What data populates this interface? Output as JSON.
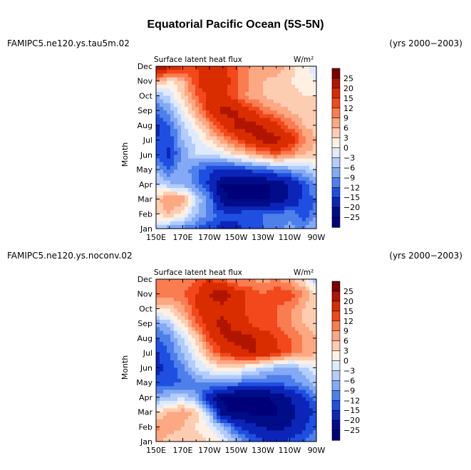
{
  "page": {
    "title": "Equatorial Pacific Ocean (5S-5N)"
  },
  "chart_data": [
    {
      "type": "heatmap",
      "run_label": "FAMIPC5.ne120.ys.tau5m.02",
      "period": "(yrs 2000−2003)",
      "subtitle": "Surface latent heat flux",
      "units": "W/m²",
      "ylabel": "Month",
      "xlabel": "",
      "xlim": [
        150,
        270
      ],
      "x_ticks": [
        "150E",
        "170E",
        "170W",
        "150W",
        "130W",
        "110W",
        "90W"
      ],
      "y_ticks": [
        "Jan",
        "Feb",
        "Mar",
        "Apr",
        "May",
        "Jun",
        "Jul",
        "Aug",
        "Sep",
        "Oct",
        "Nov",
        "Dec"
      ],
      "colorbar_levels": [
        "25",
        "20",
        "15",
        "12",
        "9",
        "6",
        "3",
        "0",
        "−3",
        "−6",
        "−9",
        "−12",
        "−15",
        "−20",
        "−25"
      ],
      "colorbar_colors": [
        "#7b0000",
        "#b01500",
        "#d92d00",
        "#f2481c",
        "#f97d50",
        "#fca882",
        "#fdcdb2",
        "#fff0e3",
        "#dfeaff",
        "#b2ccfb",
        "#84a9f5",
        "#4e7fea",
        "#1f4fe0",
        "#0c25b8",
        "#000c88",
        "#000078"
      ],
      "approx_values_note": "Approximate field values at x = 150E,160E,170E,180,170W,160W,150W,140W,130W,120W,110W,100W,90W for months Jan..Dec",
      "values": [
        [
          -5,
          -8,
          -10,
          -12,
          -14,
          -16,
          -16,
          -14,
          -12,
          -10,
          -8,
          -10,
          -5
        ],
        [
          3,
          6,
          2,
          -6,
          -10,
          -14,
          -14,
          -12,
          -12,
          -12,
          -10,
          -14,
          -10
        ],
        [
          5,
          9,
          8,
          -3,
          -10,
          -24,
          -26,
          -26,
          -26,
          -24,
          -20,
          -14,
          -12
        ],
        [
          -2,
          -5,
          -7,
          -10,
          -16,
          -26,
          -26,
          -26,
          -26,
          -24,
          -20,
          -14,
          -8
        ],
        [
          -7,
          -12,
          -6,
          -12,
          -14,
          -16,
          -16,
          -14,
          -12,
          -10,
          -8,
          -6,
          -2
        ],
        [
          -13,
          -16,
          -8,
          -3,
          -3,
          -1,
          3,
          6,
          9,
          12,
          9,
          6,
          4
        ],
        [
          -15,
          -14,
          -6,
          -2,
          3,
          8,
          13,
          18,
          22,
          22,
          18,
          11,
          6
        ],
        [
          -16,
          -12,
          -4,
          2,
          9,
          16,
          21,
          22,
          20,
          16,
          11,
          6,
          4
        ],
        [
          -12,
          -8,
          0,
          8,
          16,
          22,
          20,
          16,
          11,
          8,
          6,
          4,
          3
        ],
        [
          -6,
          -2,
          4,
          12,
          16,
          16,
          12,
          8,
          6,
          4,
          4,
          3,
          3
        ],
        [
          8,
          2,
          6,
          14,
          20,
          18,
          12,
          9,
          6,
          5,
          3,
          2,
          0
        ],
        [
          26,
          22,
          16,
          15,
          18,
          16,
          12,
          9,
          8,
          9,
          4,
          2,
          -3
        ]
      ]
    },
    {
      "type": "heatmap",
      "run_label": "FAMIPC5.ne120.ys.noconv.02",
      "period": "(yrs 2000−2003)",
      "subtitle": "Surface latent heat flux",
      "units": "W/m²",
      "ylabel": "Month",
      "xlabel": "",
      "xlim": [
        150,
        270
      ],
      "x_ticks": [
        "150E",
        "170E",
        "170W",
        "150W",
        "130W",
        "110W",
        "90W"
      ],
      "y_ticks": [
        "Jan",
        "Feb",
        "Mar",
        "Apr",
        "May",
        "Jun",
        "Jul",
        "Aug",
        "Sep",
        "Oct",
        "Nov",
        "Dec"
      ],
      "colorbar_levels": [
        "25",
        "20",
        "15",
        "12",
        "9",
        "6",
        "3",
        "0",
        "−3",
        "−6",
        "−9",
        "−12",
        "−15",
        "−20",
        "−25"
      ],
      "colorbar_colors": [
        "#7b0000",
        "#b01500",
        "#d92d00",
        "#f2481c",
        "#f97d50",
        "#fca882",
        "#fdcdb2",
        "#fff0e3",
        "#dfeaff",
        "#b2ccfb",
        "#84a9f5",
        "#4e7fea",
        "#1f4fe0",
        "#0c25b8",
        "#000c88",
        "#000078"
      ],
      "approx_values_note": "Approximate field values at x = 150E,160E,170E,180,170W,160W,150W,140W,130W,120W,110W,100W,90W for months Jan..Dec",
      "values": [
        [
          8,
          4,
          3,
          4,
          3,
          0,
          -6,
          -12,
          -14,
          -16,
          -14,
          -12,
          -8
        ],
        [
          10,
          8,
          6,
          3,
          0,
          -6,
          -14,
          -18,
          -20,
          -22,
          -20,
          -16,
          -12
        ],
        [
          2,
          6,
          8,
          5,
          -6,
          -24,
          -26,
          -26,
          -26,
          -26,
          -22,
          -18,
          -14
        ],
        [
          -8,
          -5,
          -4,
          -8,
          -18,
          -26,
          -26,
          -26,
          -26,
          -24,
          -20,
          -16,
          -10
        ],
        [
          -14,
          -14,
          -12,
          -10,
          -8,
          -8,
          -10,
          -12,
          -12,
          -12,
          -10,
          -8,
          -4
        ],
        [
          -16,
          -14,
          -10,
          -3,
          0,
          3,
          3,
          0,
          -3,
          -6,
          -8,
          -4,
          0
        ],
        [
          -16,
          -12,
          -6,
          0,
          9,
          15,
          18,
          20,
          20,
          16,
          12,
          9,
          6
        ],
        [
          -12,
          -10,
          -3,
          4,
          14,
          20,
          22,
          22,
          18,
          15,
          12,
          9,
          6
        ],
        [
          -8,
          -4,
          3,
          12,
          18,
          22,
          18,
          15,
          12,
          12,
          9,
          6,
          3
        ],
        [
          3,
          4,
          8,
          15,
          18,
          18,
          16,
          14,
          12,
          12,
          10,
          6,
          3
        ],
        [
          12,
          10,
          12,
          15,
          20,
          24,
          18,
          14,
          12,
          15,
          14,
          9,
          3
        ],
        [
          9,
          12,
          9,
          12,
          15,
          12,
          9,
          9,
          8,
          9,
          6,
          3,
          -6
        ]
      ]
    }
  ]
}
